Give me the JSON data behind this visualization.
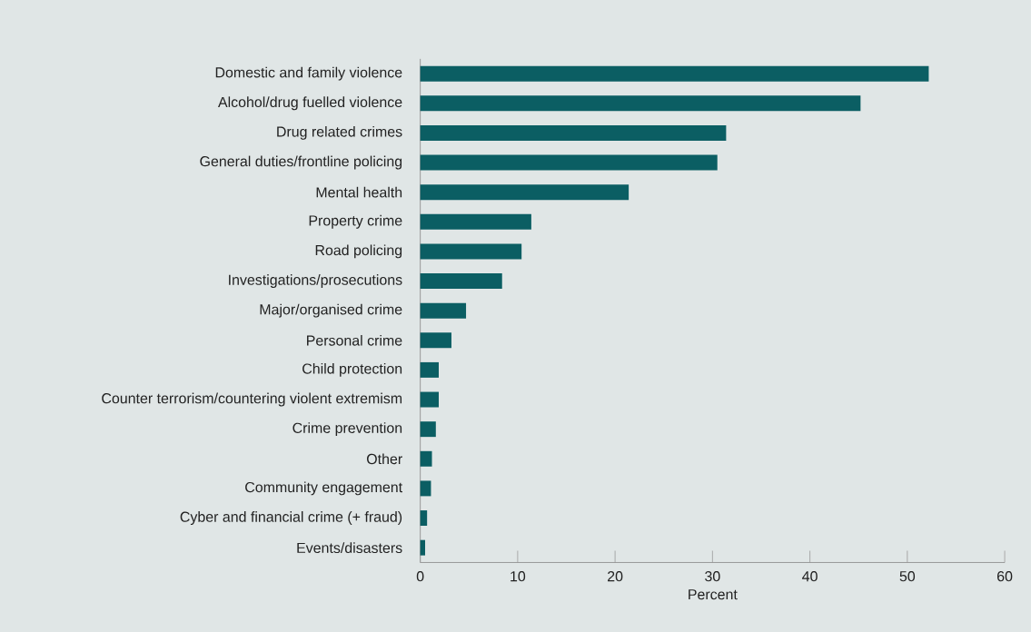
{
  "chart_data": {
    "type": "bar",
    "orientation": "horizontal",
    "categories": [
      "Domestic and family violence",
      "Alcohol/drug fuelled violence",
      "Drug related crimes",
      "General duties/frontline policing",
      "Mental health",
      "Property crime",
      "Road policing",
      "Investigations/prosecutions",
      "Major/organised crime",
      "Personal crime",
      "Child protection",
      "Counter terrorism/countering violent extremism",
      "Crime prevention",
      "Other",
      "Community engagement",
      "Cyber and financial crime (+ fraud)",
      "Events/disasters"
    ],
    "values": [
      52.2,
      45.2,
      31.4,
      30.5,
      21.4,
      11.4,
      10.4,
      8.4,
      4.7,
      3.2,
      1.9,
      1.9,
      1.6,
      1.2,
      1.1,
      0.7,
      0.5
    ],
    "color": "#0b5e63",
    "xlim": [
      0,
      60
    ],
    "xticks": [
      0,
      10,
      20,
      30,
      40,
      50,
      60
    ],
    "xlabel": "Percent"
  }
}
